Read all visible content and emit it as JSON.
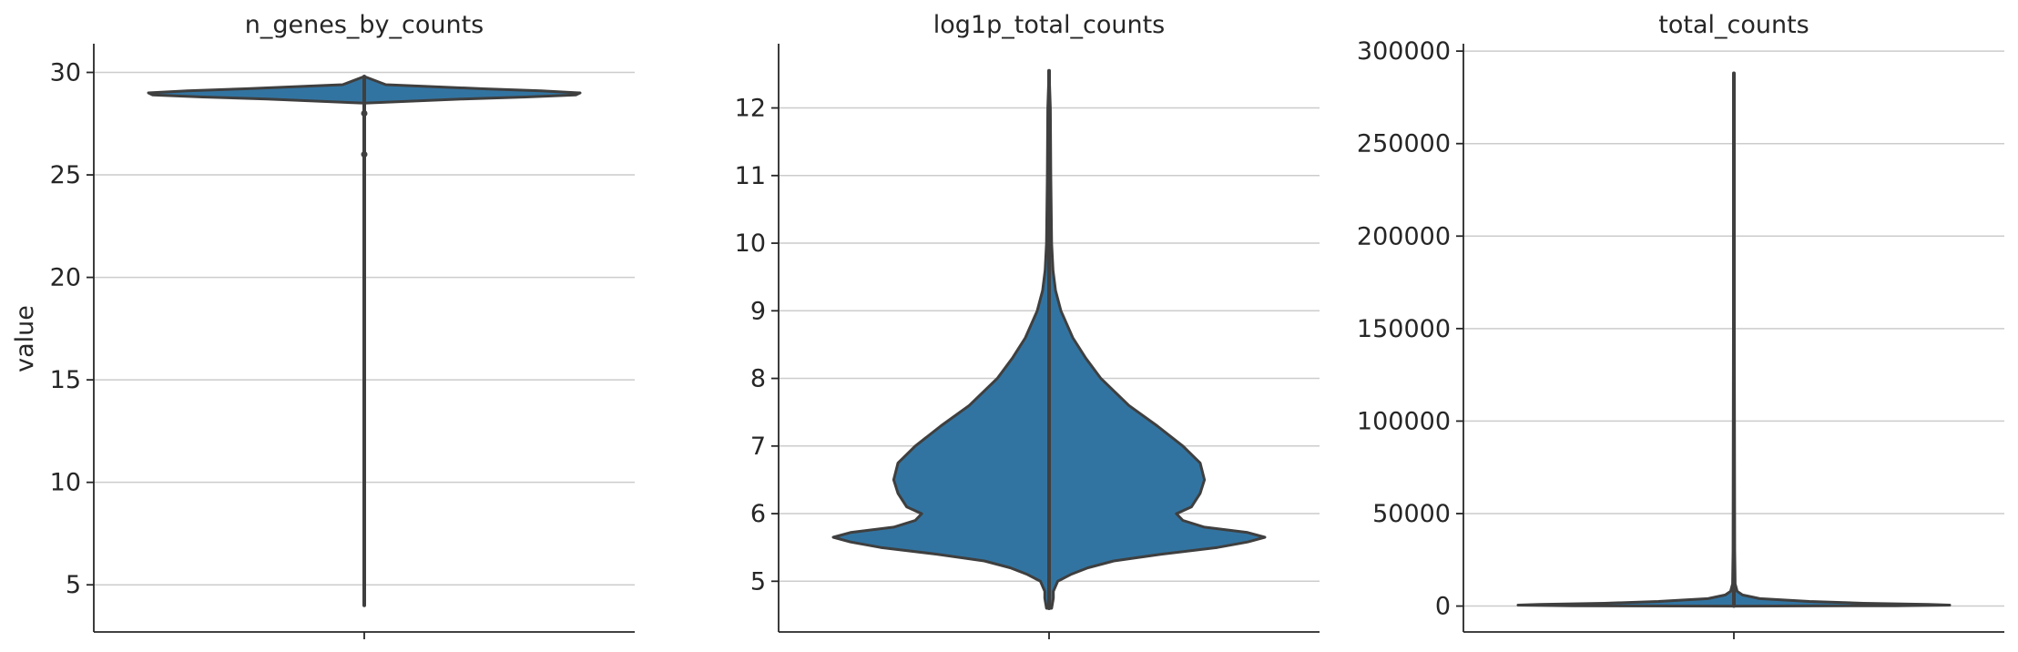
{
  "figure": {
    "ylabel": "value",
    "violin_color": "#3274a1",
    "edge_color": "#3f3f3f",
    "grid": true,
    "legend": "none"
  },
  "chart_data": [
    {
      "type": "violin",
      "title": "n_genes_by_counts",
      "xlabel": "",
      "ylabel": "value",
      "ylim": [
        2.7,
        31.4
      ],
      "yticks": [
        5,
        10,
        15,
        20,
        25,
        30
      ],
      "ytick_labels": [
        "5",
        "10",
        "15",
        "20",
        "25",
        "30"
      ],
      "grid": true,
      "series": [
        {
          "min": 4,
          "max": 29.8,
          "median": 29,
          "outliers": [
            26,
            28
          ],
          "density": [
            [
              4,
              0.0
            ],
            [
              28.5,
              0.0
            ],
            [
              28.7,
              0.45
            ],
            [
              28.8,
              0.75
            ],
            [
              28.9,
              0.98
            ],
            [
              29.0,
              1.0
            ],
            [
              29.1,
              0.82
            ],
            [
              29.2,
              0.55
            ],
            [
              29.4,
              0.1
            ],
            [
              29.8,
              0.0
            ]
          ]
        }
      ]
    },
    {
      "type": "violin",
      "title": "log1p_total_counts",
      "xlabel": "",
      "ylabel": "",
      "ylim": [
        4.25,
        12.95
      ],
      "yticks": [
        5,
        6,
        7,
        8,
        9,
        10,
        11,
        12
      ],
      "ytick_labels": [
        "5",
        "6",
        "7",
        "8",
        "9",
        "10",
        "11",
        "12"
      ],
      "grid": true,
      "series": [
        {
          "min": 4.6,
          "max": 12.55,
          "density": [
            [
              4.6,
              0.012
            ],
            [
              4.75,
              0.02
            ],
            [
              4.85,
              0.02
            ],
            [
              5.0,
              0.04
            ],
            [
              5.1,
              0.1
            ],
            [
              5.2,
              0.18
            ],
            [
              5.3,
              0.3
            ],
            [
              5.4,
              0.52
            ],
            [
              5.5,
              0.78
            ],
            [
              5.58,
              0.92
            ],
            [
              5.65,
              1.0
            ],
            [
              5.72,
              0.92
            ],
            [
              5.8,
              0.72
            ],
            [
              5.9,
              0.62
            ],
            [
              6.0,
              0.59
            ],
            [
              6.1,
              0.66
            ],
            [
              6.3,
              0.7
            ],
            [
              6.5,
              0.72
            ],
            [
              6.75,
              0.7
            ],
            [
              7.0,
              0.62
            ],
            [
              7.3,
              0.5
            ],
            [
              7.6,
              0.37
            ],
            [
              8.0,
              0.24
            ],
            [
              8.3,
              0.17
            ],
            [
              8.6,
              0.11
            ],
            [
              9.0,
              0.055
            ],
            [
              9.3,
              0.03
            ],
            [
              9.6,
              0.018
            ],
            [
              10.0,
              0.012
            ],
            [
              11.0,
              0.008
            ],
            [
              12.0,
              0.006
            ],
            [
              12.55,
              0.0
            ]
          ]
        }
      ]
    },
    {
      "type": "violin",
      "title": "total_counts",
      "xlabel": "",
      "ylabel": "",
      "ylim": [
        -14000,
        304000
      ],
      "yticks": [
        0,
        50000,
        100000,
        150000,
        200000,
        250000,
        300000
      ],
      "ytick_labels": [
        "0",
        "50000",
        "100000",
        "150000",
        "200000",
        "250000",
        "300000"
      ],
      "grid": true,
      "series": [
        {
          "min": 0,
          "max": 288000,
          "density": [
            [
              0,
              0.0
            ],
            [
              200,
              0.75
            ],
            [
              500,
              1.0
            ],
            [
              900,
              0.9
            ],
            [
              1500,
              0.6
            ],
            [
              2500,
              0.35
            ],
            [
              4000,
              0.12
            ],
            [
              6000,
              0.04
            ],
            [
              8000,
              0.015
            ],
            [
              12000,
              0.006
            ],
            [
              30000,
              0.004
            ],
            [
              288000,
              0.0
            ]
          ]
        }
      ]
    }
  ]
}
